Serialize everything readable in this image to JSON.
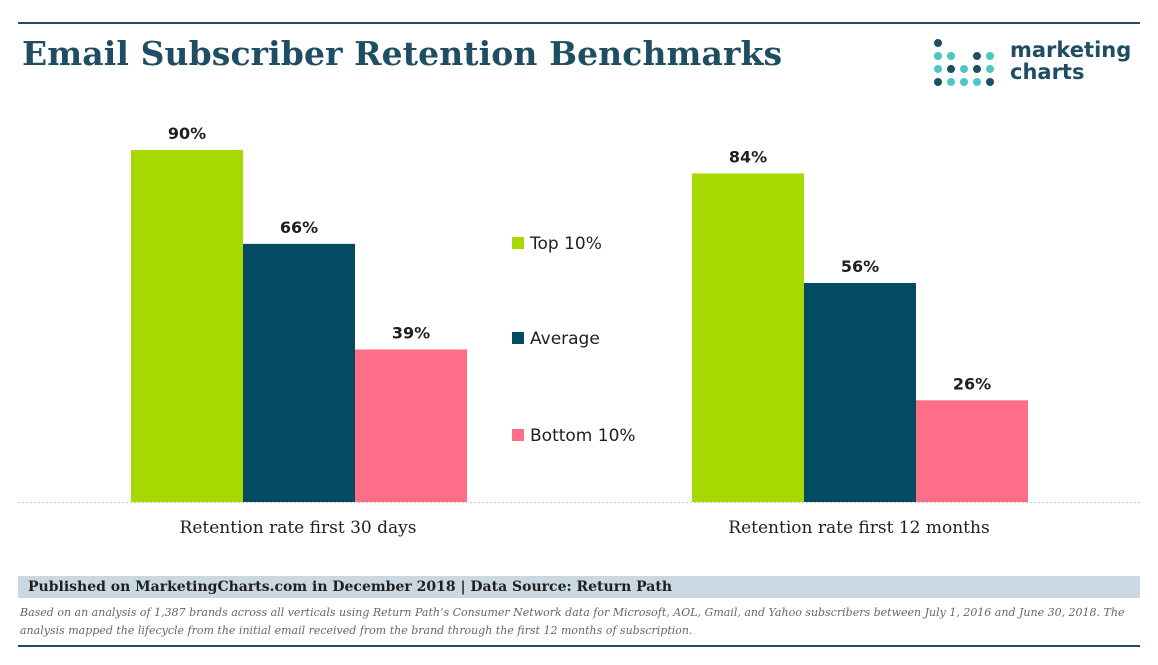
{
  "header": {
    "title": "Email Subscriber Retention Benchmarks",
    "logo_line1": "marketing",
    "logo_line2": "charts"
  },
  "footer": {
    "published": "Published on MarketingCharts.com in December 2018 | Data Source: Return Path",
    "note": "Based on an analysis of 1,387 brands across all verticals using Return Path’s Consumer Network data for Microsoft, AOL, Gmail, and Yahoo subscribers between July 1, 2016 and June 30, 2018. The analysis mapped the lifecycle from the initial email received from the brand through the first 12 months of subscription."
  },
  "colors": {
    "brand": "#1f4e63",
    "logo_dot_teal": "#4cc7c4",
    "logo_dot_blue": "#1f4e63"
  },
  "chart_data": {
    "type": "bar",
    "title": "Email Subscriber Retention Benchmarks",
    "xlabel": "",
    "ylabel": "",
    "ylim": [
      0,
      100
    ],
    "grid": false,
    "legend_position": "center",
    "categories": [
      "Retention rate first 30 days",
      "Retention rate first 12 months"
    ],
    "series": [
      {
        "name": "Top 10%",
        "color": "#a5d900",
        "values": [
          90,
          84
        ],
        "labels": [
          "90%",
          "84%"
        ]
      },
      {
        "name": "Average",
        "color": "#024b63",
        "values": [
          66,
          56
        ],
        "labels": [
          "66%",
          "56%"
        ]
      },
      {
        "name": "Bottom 10%",
        "color": "#ff6e89",
        "values": [
          39,
          26
        ],
        "labels": [
          "39%",
          "26%"
        ]
      }
    ]
  }
}
